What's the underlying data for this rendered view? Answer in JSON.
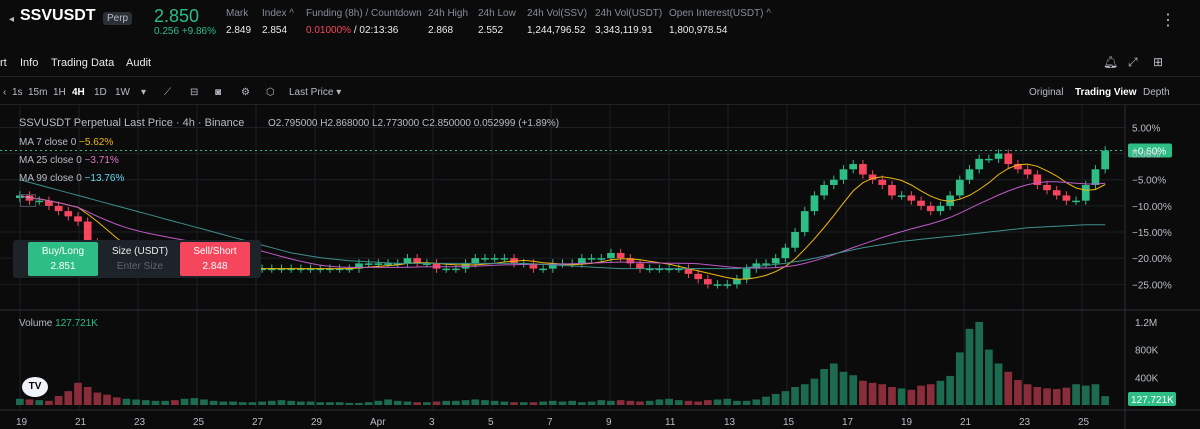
{
  "header": {
    "symbol": "SSVUSDT",
    "badge": "Perp",
    "last_price": "2.850",
    "change": "0.256",
    "change_pct": "+9.86%",
    "stats": [
      {
        "label": "Mark",
        "value": "2.849"
      },
      {
        "label": "Index ^",
        "value": "2.854"
      },
      {
        "label": "Funding (8h) / Countdown",
        "value": "0.01000%",
        "value2": "/ 02:13:36"
      },
      {
        "label": "24h High",
        "value": "2.868"
      },
      {
        "label": "24h Low",
        "value": "2.552"
      },
      {
        "label": "24h Vol(SSV)",
        "value": "1,244,796.52"
      },
      {
        "label": "24h Vol(USDT)",
        "value": "3,343,119.91"
      },
      {
        "label": "Open Interest(USDT) ^",
        "value": "1,800,978.54"
      }
    ]
  },
  "tabs": [
    "rt",
    "Info",
    "Trading Data",
    "Audit"
  ],
  "toolbar": {
    "intervals": [
      "1s",
      "15m",
      "1H",
      "4H",
      "1D",
      "1W"
    ],
    "active_interval": "4H",
    "price_type": "Last Price",
    "views": [
      "Original",
      "Trading View",
      "Depth"
    ],
    "active_view": "Trading View"
  },
  "chart_legend": {
    "title": "SSVUSDT Perpetual Last Price · 4h · Binance",
    "ohlc": "O2.795000 H2.868000 L2.773000 C2.850000 0.052999 (+1.89%)",
    "ma7": "MA 7 close 0",
    "ma7_val": "−5.62%",
    "ma25": "MA 25 close 0",
    "ma25_val": "−3.71%",
    "ma99": "MA 99 close 0",
    "ma99_val": "−13.76%",
    "volume": "Volume",
    "volume_val": "127.721K"
  },
  "order_panel": {
    "buy_label": "Buy/Long",
    "buy_price": "2.851",
    "size_label": "Size (USDT)",
    "size_placeholder": "Enter Size",
    "sell_label": "Sell/Short",
    "sell_price": "2.848"
  },
  "chart_data": {
    "type": "candlestick",
    "price_axis_labels": [
      "5.00%",
      "0.00%",
      "−5.00%",
      "−10.00%",
      "−15.00%",
      "−20.00%",
      "−25.00%"
    ],
    "current_label": "+0.60%",
    "volume_axis_labels": [
      "1.2M",
      "800K",
      "400K"
    ],
    "volume_current_label": "127.721K",
    "x_labels": [
      "19",
      "21",
      "23",
      "25",
      "27",
      "29",
      "Apr",
      "3",
      "5",
      "7",
      "9",
      "11",
      "13",
      "15",
      "17",
      "19",
      "21",
      "23",
      "25"
    ],
    "close_pct": [
      -8,
      -9,
      -9,
      -10,
      -11,
      -12,
      -13,
      -17,
      -19,
      -20,
      -21,
      -21,
      -21,
      -21,
      -21,
      -21,
      -22,
      -22,
      -22,
      -22,
      -22,
      -22,
      -22,
      -22,
      -22,
      -22,
      -22,
      -22,
      -22,
      -22,
      -22,
      -22,
      -22,
      -22,
      -22,
      -21,
      -21,
      -21,
      -21,
      -21,
      -20,
      -21,
      -21,
      -22,
      -22,
      -22,
      -21,
      -20,
      -20,
      -20,
      -20,
      -21,
      -21,
      -22,
      -22,
      -21,
      -21,
      -21,
      -20,
      -20,
      -20,
      -19,
      -20,
      -21,
      -22,
      -22,
      -22,
      -22,
      -22,
      -23,
      -24,
      -25,
      -25,
      -25,
      -24,
      -22,
      -21,
      -21,
      -20,
      -18,
      -15,
      -11,
      -8,
      -6,
      -5,
      -3,
      -2,
      -4,
      -5,
      -6,
      -8,
      -8,
      -9,
      -10,
      -11,
      -10,
      -8,
      -5,
      -3,
      -1,
      -1,
      0,
      -2,
      -3,
      -4,
      -6,
      -7,
      -8,
      -9,
      -9,
      -6,
      -3,
      0.6
    ],
    "ma99_pct": [
      -5,
      -5.5,
      -6,
      -6.5,
      -7,
      -7.5,
      -8,
      -8.5,
      -9,
      -9.5,
      -10,
      -10.5,
      -11,
      -11.5,
      -12,
      -12.5,
      -13,
      -13.5,
      -14,
      -14.5,
      -15,
      -15.5,
      -16,
      -16.5,
      -17,
      -17.5,
      -18,
      -18.5,
      -19,
      -19.3,
      -19.6,
      -19.9,
      -20.1,
      -20.3,
      -20.5,
      -20.6,
      -20.7,
      -20.8,
      -20.9,
      -21,
      -21,
      -21,
      -21,
      -21,
      -21,
      -21,
      -21,
      -21,
      -21,
      -21,
      -21,
      -21,
      -21,
      -21.1,
      -21.2,
      -21.3,
      -21.4,
      -21.5,
      -21.6,
      -21.7,
      -21.8,
      -21.9,
      -22,
      -22,
      -22,
      -22,
      -22,
      -22,
      -22,
      -22,
      -22,
      -22,
      -22,
      -22,
      -22,
      -21.8,
      -21.6,
      -21.4,
      -21.2,
      -21,
      -20.7,
      -20.4,
      -20,
      -19.6,
      -19.2,
      -18.8,
      -18.4,
      -18,
      -17.7,
      -17.4,
      -17.1,
      -16.8,
      -16.6,
      -16.4,
      -16.2,
      -16,
      -15.8,
      -15.6,
      -15.4,
      -15.2,
      -15,
      -14.8,
      -14.6,
      -14.4,
      -14.2,
      -14.1,
      -14,
      -13.9,
      -13.8,
      -13.7,
      -13.6,
      -13.6,
      -13.6
    ],
    "volume_k": [
      90,
      80,
      70,
      60,
      130,
      200,
      320,
      260,
      180,
      150,
      110,
      90,
      80,
      70,
      60,
      60,
      70,
      90,
      100,
      80,
      60,
      50,
      50,
      40,
      40,
      50,
      60,
      70,
      60,
      50,
      50,
      40,
      40,
      40,
      30,
      30,
      40,
      60,
      80,
      60,
      50,
      40,
      40,
      50,
      60,
      60,
      70,
      80,
      70,
      60,
      50,
      40,
      40,
      40,
      50,
      60,
      50,
      60,
      40,
      50,
      70,
      60,
      70,
      60,
      50,
      60,
      80,
      90,
      70,
      60,
      50,
      70,
      80,
      90,
      60,
      60,
      80,
      120,
      160,
      200,
      260,
      300,
      380,
      520,
      600,
      480,
      430,
      350,
      320,
      300,
      260,
      240,
      220,
      280,
      300,
      350,
      420,
      760,
      1100,
      1200,
      800,
      600,
      480,
      360,
      300,
      260,
      240,
      230,
      250,
      300,
      280,
      300,
      127.7
    ],
    "y_range_pct": [
      -28,
      7
    ]
  }
}
